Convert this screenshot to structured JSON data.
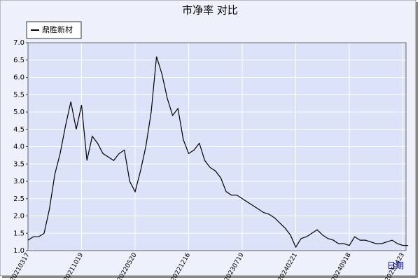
{
  "chart_data": {
    "type": "line",
    "title": "市净率  对比",
    "x_label": "日期",
    "categories": [
      "20210317",
      null,
      null,
      null,
      null,
      null,
      null,
      null,
      null,
      null,
      "20211019",
      null,
      null,
      null,
      null,
      null,
      null,
      null,
      null,
      null,
      "20220520",
      null,
      null,
      null,
      null,
      null,
      null,
      null,
      null,
      null,
      "20221216",
      null,
      null,
      null,
      null,
      null,
      null,
      null,
      null,
      null,
      "20230719",
      null,
      null,
      null,
      null,
      null,
      null,
      null,
      null,
      null,
      "20240221",
      null,
      null,
      null,
      null,
      null,
      null,
      null,
      null,
      null,
      "20240918",
      null,
      null,
      null,
      null,
      null,
      null,
      null,
      null,
      null,
      "20250423",
      null
    ],
    "series": [
      {
        "name": "鼎胜新材",
        "color": "#000000",
        "values": [
          1.3,
          1.4,
          1.4,
          1.5,
          2.2,
          3.2,
          3.8,
          4.6,
          5.3,
          4.5,
          5.2,
          3.6,
          4.3,
          4.1,
          3.8,
          3.7,
          3.6,
          3.8,
          3.9,
          3.0,
          2.7,
          3.3,
          4.0,
          5.0,
          6.6,
          6.1,
          5.4,
          4.9,
          5.1,
          4.2,
          3.8,
          3.9,
          4.1,
          3.6,
          3.4,
          3.3,
          3.1,
          2.7,
          2.6,
          2.6,
          2.5,
          2.4,
          2.3,
          2.2,
          2.1,
          2.05,
          1.95,
          1.8,
          1.65,
          1.45,
          1.1,
          1.35,
          1.4,
          1.5,
          1.6,
          1.45,
          1.35,
          1.3,
          1.2,
          1.2,
          1.15,
          1.4,
          1.3,
          1.3,
          1.25,
          1.2,
          1.2,
          1.25,
          1.3,
          1.2,
          1.15,
          1.15
        ]
      }
    ],
    "ylim": [
      1.0,
      7.0
    ],
    "yticks": [
      {
        "value": 1.0,
        "label": "1.0"
      },
      {
        "value": 1.5,
        "label": "1.5"
      },
      {
        "value": 2.0,
        "label": "2.0"
      },
      {
        "value": 2.5,
        "label": "2.5"
      },
      {
        "value": 3.0,
        "label": "3.0"
      },
      {
        "value": 3.5,
        "label": "3.5"
      },
      {
        "value": 4.0,
        "label": "4.0"
      },
      {
        "value": 4.5,
        "label": "4.5"
      },
      {
        "value": 5.0,
        "label": "5.0"
      },
      {
        "value": 5.5,
        "label": "5.5"
      },
      {
        "value": 6.0,
        "label": "6.0"
      },
      {
        "value": 6.5,
        "label": "6.5"
      },
      {
        "value": 7.0,
        "label": "7.0"
      }
    ],
    "grid": true
  }
}
